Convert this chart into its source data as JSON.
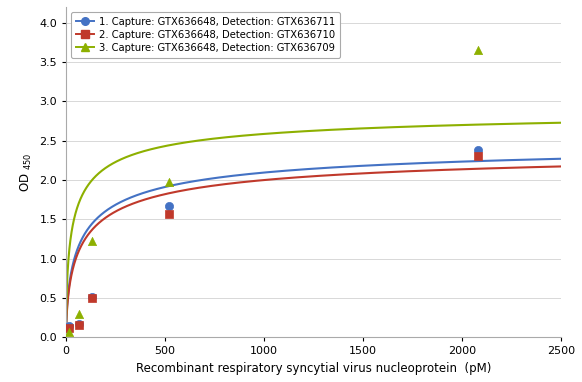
{
  "title": "",
  "xlabel": "Recombinant respiratory syncytial virus nucleoprotein  (pM)",
  "ylabel": "OD  450",
  "xlim": [
    0,
    2500
  ],
  "ylim": [
    0,
    4.2
  ],
  "yticks": [
    0,
    0.5,
    1.0,
    1.5,
    2.0,
    2.5,
    3.0,
    3.5,
    4.0
  ],
  "xticks": [
    0,
    500,
    1000,
    1500,
    2000,
    2500
  ],
  "series": [
    {
      "label": "1. Capture: GTX636648, Detection: GTX636711",
      "color": "#4472c4",
      "marker": "o",
      "scatter_x": [
        13,
        65,
        130,
        521,
        2083
      ],
      "scatter_y": [
        0.15,
        0.17,
        0.52,
        1.67,
        2.38
      ],
      "Vmax": 2.55,
      "Km": 85,
      "n": 0.62
    },
    {
      "label": "2. Capture: GTX636648, Detection: GTX636710",
      "color": "#c0392b",
      "marker": "s",
      "scatter_x": [
        13,
        65,
        130,
        521,
        2083
      ],
      "scatter_y": [
        0.12,
        0.16,
        0.5,
        1.57,
        2.3
      ],
      "Vmax": 2.45,
      "Km": 90,
      "n": 0.62
    },
    {
      "label": "3. Capture: GTX636648, Detection: GTX636709",
      "color": "#8db000",
      "marker": "^",
      "scatter_x": [
        13,
        65,
        130,
        521,
        2083
      ],
      "scatter_y": [
        0.07,
        0.3,
        1.22,
        1.97,
        3.65
      ],
      "Vmax": 2.95,
      "Km": 38,
      "n": 0.6
    }
  ],
  "legend_pos": "upper left",
  "grid_color": "#d8d8d8",
  "background_color": "#ffffff",
  "fig_bg": "#ffffff"
}
